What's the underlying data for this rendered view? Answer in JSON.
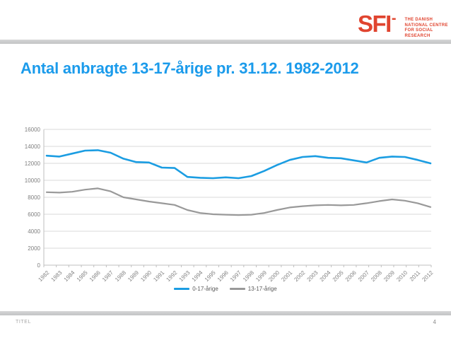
{
  "slide": {
    "title": "Antal anbragte 13-17-årige pr. 31.12. 1982-2012",
    "footer_left": "TITEL",
    "page_number": "4"
  },
  "logo": {
    "text": "SFI",
    "mark": "-",
    "tagline_lines": [
      "THE DANISH",
      "NATIONAL CENTRE",
      "FOR SOCIAL RESEARCH"
    ],
    "color": "#E0442F"
  },
  "colors": {
    "title_blue": "#1B9BEB",
    "logo_red": "#E0442F",
    "divider_gray": "#C8C9CA",
    "gridline": "#D9D9D9",
    "axis": "#BFBFBF",
    "axis_label": "#7F7F7F",
    "legend_text": "#595959",
    "footer_gray": "#A6A6A6"
  },
  "chart_data": {
    "type": "line",
    "title": "",
    "xlabel": "",
    "ylabel": "",
    "categories": [
      "1982",
      "1983",
      "1984",
      "1985",
      "1986",
      "1987",
      "1988",
      "1989",
      "1990",
      "1991",
      "1992",
      "1993",
      "1994",
      "1995",
      "1996",
      "1997",
      "1998",
      "1999",
      "2000",
      "2001",
      "2002",
      "2003",
      "2004",
      "2005",
      "2006",
      "2007",
      "2008",
      "2009",
      "2010",
      "2011",
      "2012"
    ],
    "series": [
      {
        "name": "0-17-årige",
        "color": "#1B9DE2",
        "stroke_width": 2.6,
        "values": [
          12900,
          12800,
          13150,
          13500,
          13550,
          13250,
          12550,
          12150,
          12100,
          11500,
          11450,
          10400,
          10300,
          10250,
          10350,
          10250,
          10500,
          11100,
          11800,
          12400,
          12750,
          12850,
          12650,
          12600,
          12350,
          12100,
          12650,
          12800,
          12750,
          12400,
          12000
        ]
      },
      {
        "name": "13-17-årige",
        "color": "#999999",
        "stroke_width": 2.2,
        "values": [
          8600,
          8550,
          8650,
          8900,
          9050,
          8700,
          8000,
          7750,
          7500,
          7300,
          7100,
          6500,
          6150,
          6000,
          5950,
          5900,
          5950,
          6150,
          6500,
          6800,
          6950,
          7050,
          7100,
          7050,
          7100,
          7300,
          7550,
          7750,
          7600,
          7300,
          6850
        ]
      }
    ],
    "ylim": [
      0,
      16000
    ],
    "ytick_step": 2000,
    "grid": true,
    "legend_position": "bottom"
  }
}
